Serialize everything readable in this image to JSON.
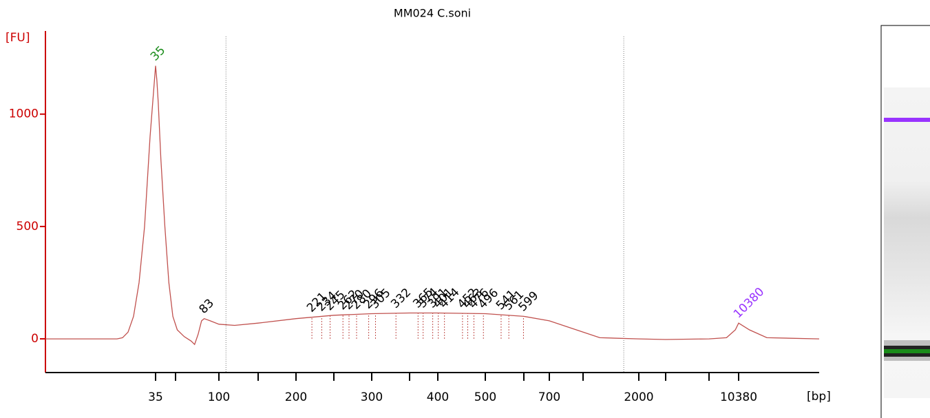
{
  "chart_data": {
    "type": "line",
    "title": "MM024 C.soni",
    "y_label": "[FU]",
    "x_label": "[bp]",
    "xlim": [
      15,
      15000
    ],
    "ylim": [
      -150,
      1370
    ],
    "yticks": [
      0,
      500,
      1000
    ],
    "xticks": [
      35,
      {
        "value": 50,
        "label": null
      },
      100,
      {
        "value": 150,
        "label": null
      },
      200,
      {
        "value": 250,
        "label": null
      },
      300,
      {
        "value": 350,
        "label": null
      },
      400,
      500,
      {
        "value": 600,
        "label": null
      },
      700,
      {
        "value": 1000,
        "label": null
      },
      2000,
      {
        "value": 3000,
        "label": null
      },
      {
        "value": 7000,
        "label": null
      },
      10380
    ],
    "x": [
      15,
      28,
      29,
      30,
      31,
      32,
      33,
      34,
      35,
      36,
      37,
      39,
      42,
      45,
      48,
      52,
      60,
      68,
      72,
      76,
      80,
      83,
      90,
      100,
      120,
      150,
      200,
      250,
      300,
      350,
      400,
      500,
      600,
      700,
      1000,
      1300,
      2000,
      3000,
      7000,
      9000,
      10000,
      10380,
      11000,
      12000,
      15000
    ],
    "values": [
      0,
      0,
      5,
      30,
      100,
      250,
      500,
      900,
      1215,
      1150,
      1050,
      800,
      500,
      250,
      100,
      40,
      10,
      -10,
      -25,
      20,
      80,
      90,
      80,
      65,
      60,
      70,
      90,
      105,
      112,
      115,
      115,
      112,
      100,
      80,
      30,
      5,
      0,
      -3,
      0,
      5,
      40,
      70,
      40,
      5,
      0
    ],
    "color": "#c0504d",
    "axis_color": "#cc0000",
    "peaks": [
      35,
      83,
      221,
      234,
      245,
      262,
      270,
      280,
      296,
      305,
      332,
      365,
      374,
      391,
      401,
      414,
      452,
      463,
      476,
      496,
      541,
      561,
      599,
      10380
    ],
    "lower_marker_color": "#1a8c1a",
    "upper_marker_color": "#9933ff",
    "region_bounds": [
      109,
      1730
    ]
  }
}
